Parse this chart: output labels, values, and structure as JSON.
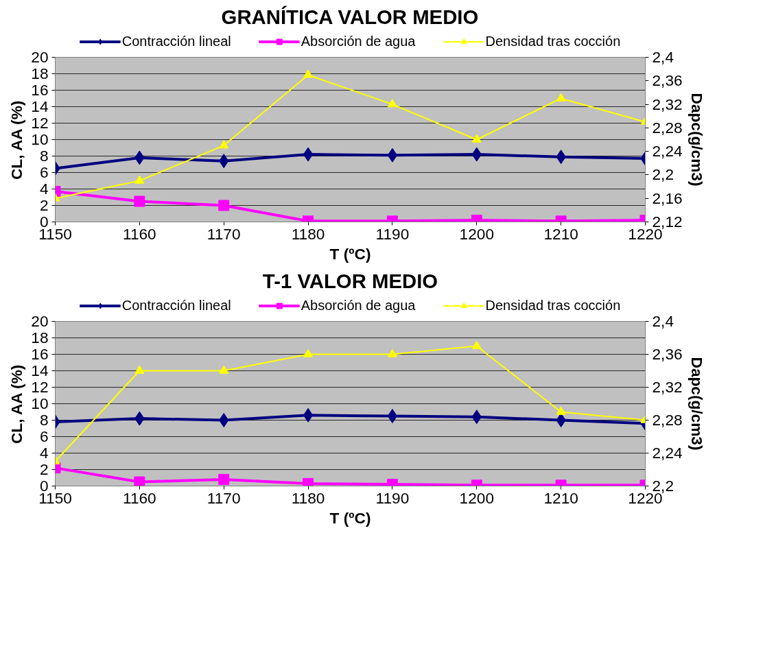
{
  "chart_data": [
    {
      "type": "line",
      "title": "GRANÍTICA VALOR MEDIO",
      "xlabel": "T (ºC)",
      "ylabel": "CL, AA (%)",
      "y2label": "Dapc(g/cm3)",
      "x": [
        1150,
        1160,
        1170,
        1180,
        1190,
        1200,
        1210,
        1220
      ],
      "series": [
        {
          "name": "Contracción lineal",
          "color": "#000080",
          "marker": "diamond",
          "values": [
            6.5,
            7.8,
            7.4,
            8.2,
            8.1,
            8.2,
            7.9,
            7.7
          ]
        },
        {
          "name": "Absorción de agua",
          "color": "#ff00ff",
          "marker": "square",
          "values": [
            3.7,
            2.5,
            2.0,
            0.1,
            0.1,
            0.2,
            0.1,
            0.2
          ]
        },
        {
          "name": "Densidad tras cocción",
          "color": "#ffff00",
          "marker": "triangle",
          "axis": "y2",
          "values": [
            2.16,
            2.19,
            2.25,
            2.37,
            2.32,
            2.26,
            2.33,
            2.29
          ]
        }
      ],
      "xlim": [
        1150,
        1220
      ],
      "xticks": [
        1150,
        1160,
        1170,
        1180,
        1190,
        1200,
        1210,
        1220
      ],
      "ylim": [
        0,
        20
      ],
      "yticks": [
        0,
        2,
        4,
        6,
        8,
        10,
        12,
        14,
        16,
        18,
        20
      ],
      "y2lim": [
        2.12,
        2.4
      ],
      "y2ticks": [
        {
          "value": 2.12,
          "label": "2,12"
        },
        {
          "value": 2.16,
          "label": "2,16"
        },
        {
          "value": 2.2,
          "label": "2,2"
        },
        {
          "value": 2.24,
          "label": "2,24"
        },
        {
          "value": 2.28,
          "label": "2,28"
        },
        {
          "value": 2.32,
          "label": "2,32"
        },
        {
          "value": 2.36,
          "label": "2,36"
        },
        {
          "value": 2.4,
          "label": "2,4"
        }
      ],
      "grid": "y",
      "legend": "top"
    },
    {
      "type": "line",
      "title": "T-1 VALOR MEDIO",
      "xlabel": "T (ºC)",
      "ylabel": "CL, AA (%)",
      "y2label": "Dapc(g/cm3)",
      "x": [
        1150,
        1160,
        1170,
        1180,
        1190,
        1200,
        1210,
        1220
      ],
      "series": [
        {
          "name": "Contracción lineal",
          "color": "#000080",
          "marker": "diamond",
          "values": [
            7.8,
            8.2,
            8.0,
            8.6,
            8.5,
            8.4,
            8.0,
            7.6
          ]
        },
        {
          "name": "Absorción de agua",
          "color": "#ff00ff",
          "marker": "square",
          "values": [
            2.2,
            0.5,
            0.8,
            0.3,
            0.2,
            0.1,
            0.1,
            0.1
          ]
        },
        {
          "name": "Densidad tras cocción",
          "color": "#ffff00",
          "marker": "triangle",
          "axis": "y2",
          "values": [
            2.23,
            2.34,
            2.34,
            2.36,
            2.36,
            2.37,
            2.29,
            2.28
          ]
        }
      ],
      "xlim": [
        1150,
        1220
      ],
      "xticks": [
        1150,
        1160,
        1170,
        1180,
        1190,
        1200,
        1210,
        1220
      ],
      "ylim": [
        0,
        20
      ],
      "yticks": [
        0,
        2,
        4,
        6,
        8,
        10,
        12,
        14,
        16,
        18,
        20
      ],
      "y2lim": [
        2.2,
        2.4
      ],
      "y2ticks": [
        {
          "value": 2.2,
          "label": "2,2"
        },
        {
          "value": 2.24,
          "label": "2,24"
        },
        {
          "value": 2.28,
          "label": "2,28"
        },
        {
          "value": 2.32,
          "label": "2,32"
        },
        {
          "value": 2.36,
          "label": "2,36"
        },
        {
          "value": 2.4,
          "label": "2,4"
        }
      ],
      "grid": "y",
      "legend": "top"
    }
  ]
}
